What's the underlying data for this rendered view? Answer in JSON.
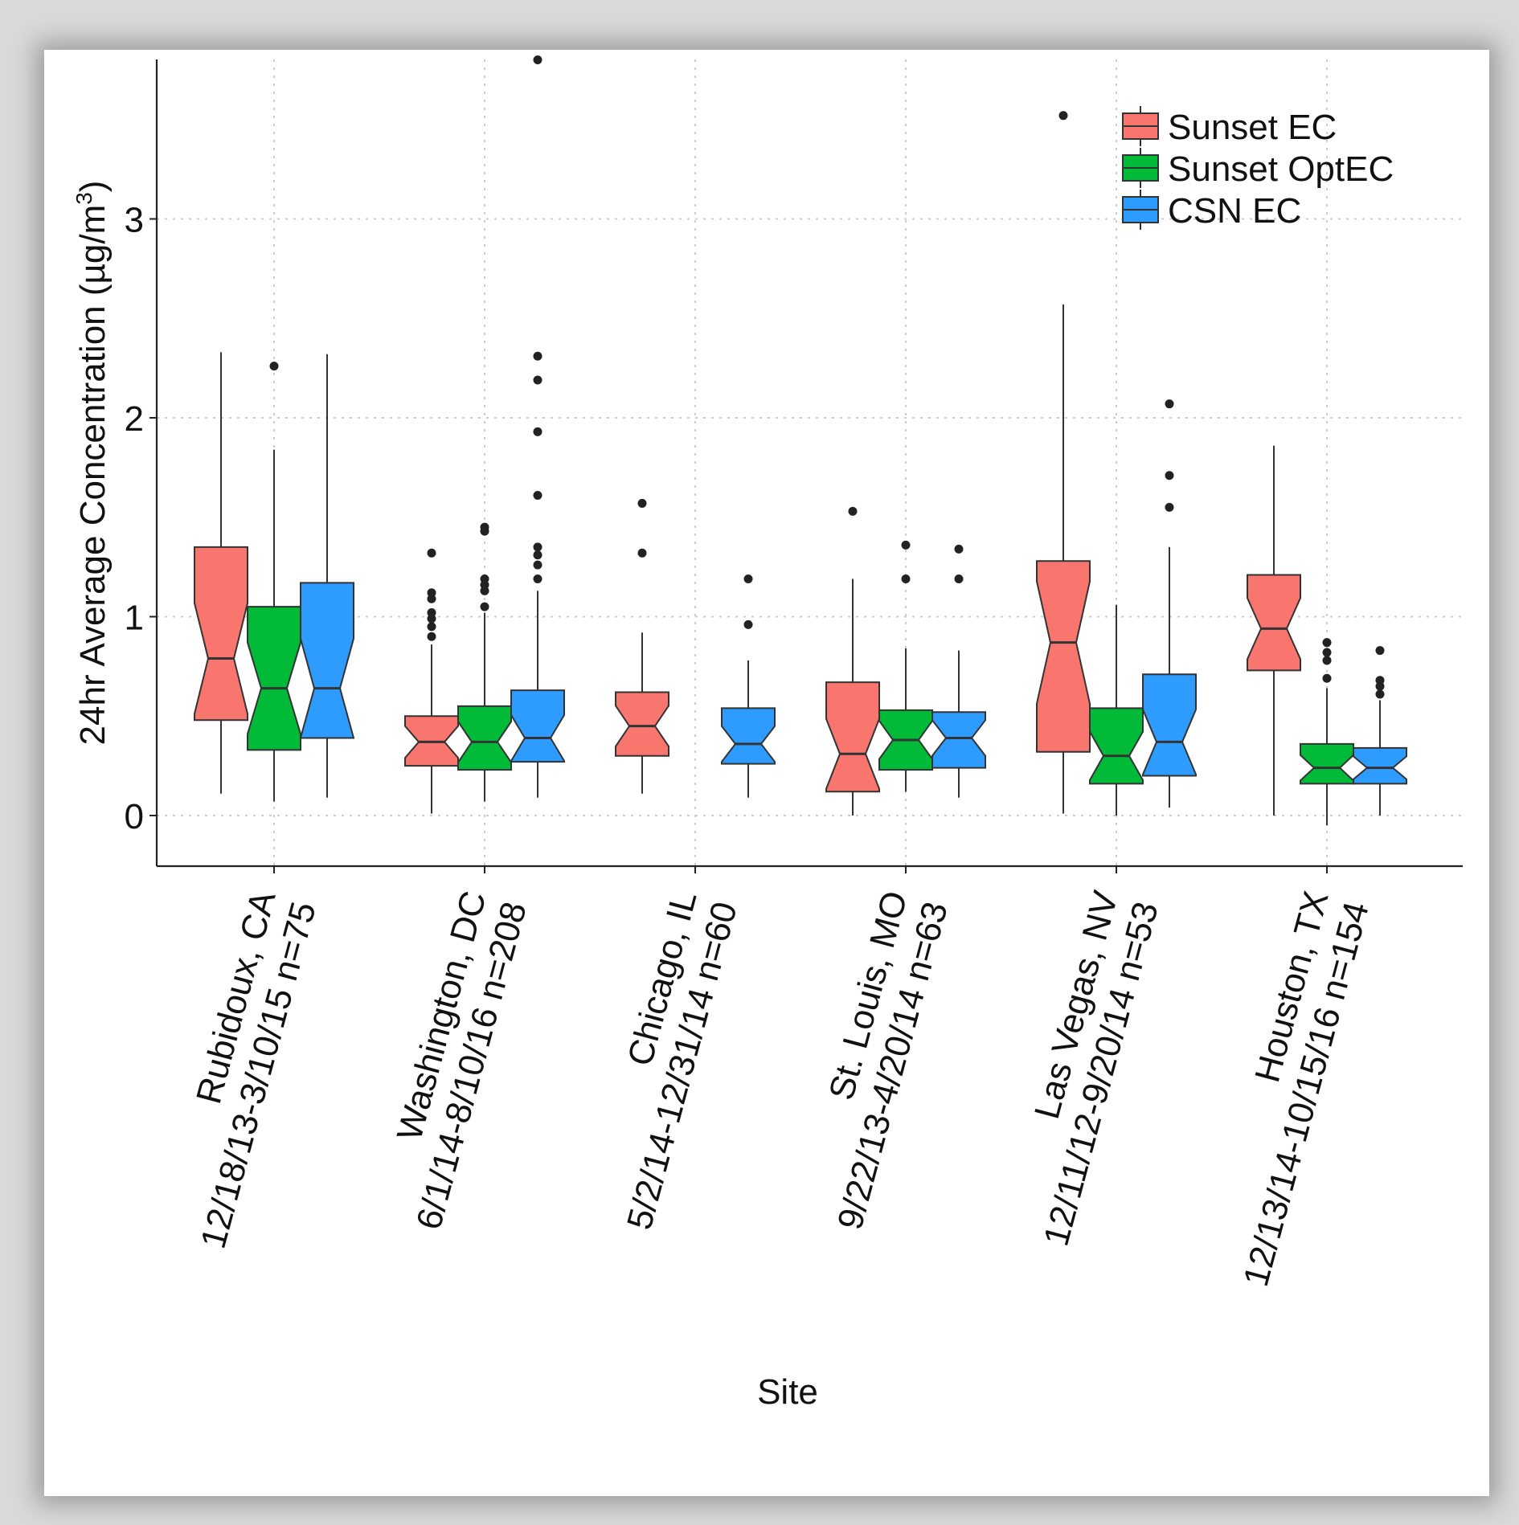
{
  "chart_data": {
    "type": "boxplot",
    "notched": true,
    "title": "",
    "xlabel": "Site",
    "ylabel": "24hr Average Concentration (µg/m",
    "ylabel_superscript": "3",
    "ylabel_close": ")",
    "ylim": [
      -0.25,
      3.95
    ],
    "yticks": [
      0,
      1,
      2,
      3
    ],
    "ytick_labels": [
      "0",
      "1",
      "2",
      "3"
    ],
    "grid": true,
    "legend_position": "top-right",
    "series": [
      {
        "name": "Sunset EC",
        "color": "#f8766d"
      },
      {
        "name": "Sunset OptEC",
        "color": "#00ba38"
      },
      {
        "name": "CSN EC",
        "color": "#2e9bff"
      }
    ],
    "categories": [
      {
        "line1": "Rubidoux, CA",
        "line2": "12/18/13-3/10/15 n=75",
        "boxes": {
          "Sunset EC": {
            "whisker_low": 0.11,
            "q1": 0.48,
            "median": 0.79,
            "q3": 1.35,
            "whisker_high": 2.33,
            "outliers": []
          },
          "Sunset OptEC": {
            "whisker_low": 0.07,
            "q1": 0.33,
            "median": 0.64,
            "q3": 1.05,
            "whisker_high": 1.84,
            "outliers": [
              2.26
            ]
          },
          "CSN EC": {
            "whisker_low": 0.09,
            "q1": 0.39,
            "median": 0.64,
            "q3": 1.17,
            "whisker_high": 2.32,
            "outliers": []
          }
        }
      },
      {
        "line1": "Washington, DC",
        "line2": "6/1/14-8/10/16 n=208",
        "boxes": {
          "Sunset EC": {
            "whisker_low": 0.01,
            "q1": 0.25,
            "median": 0.37,
            "q3": 0.5,
            "whisker_high": 0.86,
            "outliers": [
              0.9,
              0.95,
              0.99,
              1.02,
              1.09,
              1.12,
              1.32
            ]
          },
          "Sunset OptEC": {
            "whisker_low": 0.07,
            "q1": 0.23,
            "median": 0.37,
            "q3": 0.55,
            "whisker_high": 1.02,
            "outliers": [
              1.05,
              1.13,
              1.16,
              1.19,
              1.43,
              1.45
            ]
          },
          "CSN EC": {
            "whisker_low": 0.09,
            "q1": 0.27,
            "median": 0.39,
            "q3": 0.63,
            "whisker_high": 1.13,
            "outliers": [
              1.19,
              1.26,
              1.31,
              1.35,
              1.61,
              1.93,
              2.19,
              2.31,
              3.8
            ]
          }
        }
      },
      {
        "line1": "Chicago, IL",
        "line2": "5/2/14-12/31/14 n=60",
        "boxes": {
          "Sunset EC": {
            "whisker_low": 0.11,
            "q1": 0.3,
            "median": 0.45,
            "q3": 0.62,
            "whisker_high": 0.92,
            "outliers": [
              1.32,
              1.57
            ]
          },
          "CSN EC": {
            "whisker_low": 0.09,
            "q1": 0.26,
            "median": 0.36,
            "q3": 0.54,
            "whisker_high": 0.78,
            "outliers": [
              0.96,
              1.19
            ]
          }
        }
      },
      {
        "line1": "St. Louis, MO",
        "line2": "9/22/13-4/20/14 n=63",
        "boxes": {
          "Sunset EC": {
            "whisker_low": 0.0,
            "q1": 0.12,
            "median": 0.31,
            "q3": 0.67,
            "whisker_high": 1.19,
            "outliers": [
              1.53
            ]
          },
          "Sunset OptEC": {
            "whisker_low": 0.12,
            "q1": 0.23,
            "median": 0.38,
            "q3": 0.53,
            "whisker_high": 0.84,
            "outliers": [
              1.19,
              1.36
            ]
          },
          "CSN EC": {
            "whisker_low": 0.09,
            "q1": 0.24,
            "median": 0.39,
            "q3": 0.52,
            "whisker_high": 0.83,
            "outliers": [
              1.19,
              1.34
            ]
          }
        }
      },
      {
        "line1": "Las Vegas, NV",
        "line2": "12/11/12-9/20/14 n=53",
        "boxes": {
          "Sunset EC": {
            "whisker_low": 0.01,
            "q1": 0.32,
            "median": 0.87,
            "q3": 1.28,
            "whisker_high": 2.57,
            "outliers": [
              3.52
            ]
          },
          "Sunset OptEC": {
            "whisker_low": 0.0,
            "q1": 0.16,
            "median": 0.3,
            "q3": 0.54,
            "whisker_high": 1.06,
            "outliers": []
          },
          "CSN EC": {
            "whisker_low": 0.04,
            "q1": 0.2,
            "median": 0.37,
            "q3": 0.71,
            "whisker_high": 1.35,
            "outliers": [
              1.55,
              1.71,
              2.07
            ]
          }
        }
      },
      {
        "line1": "Houston, TX",
        "line2": "12/13/14-10/15/16 n=154",
        "boxes": {
          "Sunset EC": {
            "whisker_low": 0.0,
            "q1": 0.73,
            "median": 0.94,
            "q3": 1.21,
            "whisker_high": 1.86,
            "outliers": []
          },
          "Sunset OptEC": {
            "whisker_low": -0.05,
            "q1": 0.16,
            "median": 0.24,
            "q3": 0.36,
            "whisker_high": 0.64,
            "outliers": [
              0.69,
              0.78,
              0.82,
              0.87
            ]
          },
          "CSN EC": {
            "whisker_low": 0.0,
            "q1": 0.16,
            "median": 0.24,
            "q3": 0.34,
            "whisker_high": 0.58,
            "outliers": [
              0.61,
              0.65,
              0.68,
              0.83
            ]
          }
        }
      }
    ]
  }
}
